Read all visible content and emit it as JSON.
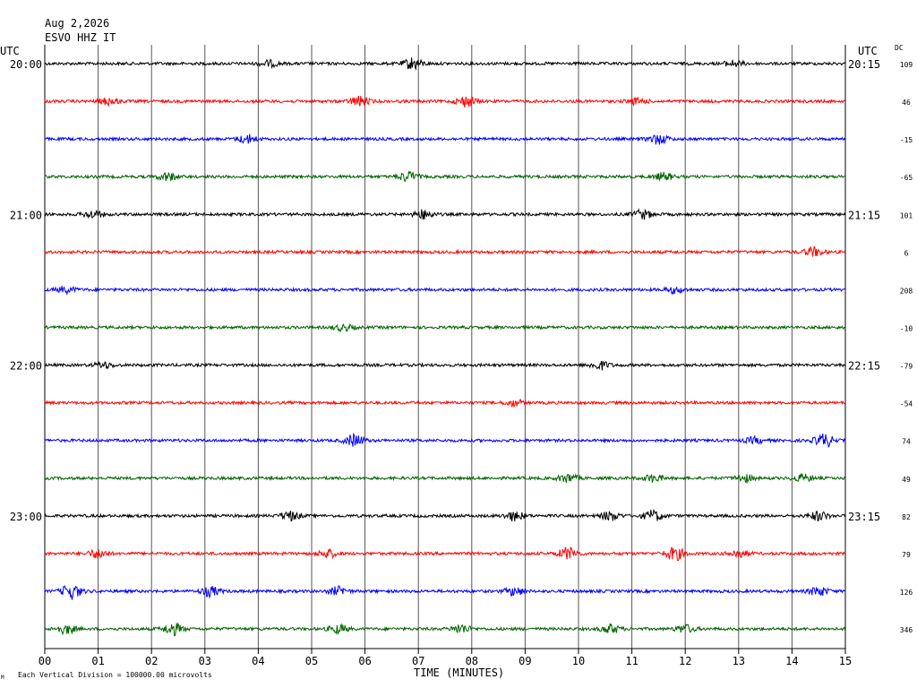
{
  "header": {
    "date": "Aug 2,2026",
    "station": "ESVO HHZ IT",
    "utc_left": "UTC",
    "utc_right": "UTC",
    "dc_label": "DC"
  },
  "footer": {
    "scale_note": "Each Vertical Division = 100000.00 microvolts",
    "corner_mark": "M"
  },
  "colors": {
    "trace_cycle": [
      "#000000",
      "#ff0000",
      "#0000ff",
      "#006400"
    ],
    "grid": "#555555",
    "frame": "#000000"
  },
  "chart_data": {
    "type": "line",
    "title": "",
    "xlabel": "TIME (MINUTES)",
    "ylabel": "",
    "x_range": [
      0,
      15
    ],
    "x_ticks": [
      "00",
      "01",
      "02",
      "03",
      "04",
      "05",
      "06",
      "07",
      "08",
      "09",
      "10",
      "11",
      "12",
      "13",
      "14",
      "15"
    ],
    "grid": true,
    "hour_labels_left": [
      "20:00",
      "21:00",
      "22:00",
      "23:00"
    ],
    "hour_labels_right": [
      "20:15",
      "21:15",
      "22:15",
      "23:15"
    ],
    "traces": [
      {
        "dc": "109",
        "events": [
          [
            4.2,
            1.0
          ],
          [
            6.9,
            2.0
          ],
          [
            12.9,
            1.0
          ]
        ]
      },
      {
        "dc": "46",
        "events": [
          [
            1.2,
            1.2
          ],
          [
            5.9,
            1.6
          ],
          [
            7.9,
            1.8
          ],
          [
            11.1,
            1.0
          ]
        ]
      },
      {
        "dc": "-15",
        "events": [
          [
            3.8,
            1.4
          ],
          [
            11.5,
            1.6
          ]
        ]
      },
      {
        "dc": "-65",
        "events": [
          [
            2.3,
            1.3
          ],
          [
            6.8,
            1.6
          ],
          [
            11.6,
            1.2
          ]
        ]
      },
      {
        "dc": "101",
        "events": [
          [
            0.9,
            1.2
          ],
          [
            7.1,
            1.5
          ],
          [
            11.2,
            1.5
          ]
        ]
      },
      {
        "dc": "6",
        "events": [
          [
            14.4,
            1.5
          ]
        ]
      },
      {
        "dc": "208",
        "events": [
          [
            0.4,
            1.0
          ],
          [
            11.8,
            1.0
          ]
        ]
      },
      {
        "dc": "-10",
        "events": [
          [
            5.6,
            1.0
          ]
        ]
      },
      {
        "dc": "-79",
        "events": [
          [
            1.1,
            1.0
          ],
          [
            10.4,
            1.4
          ]
        ]
      },
      {
        "dc": "-54",
        "events": [
          [
            8.8,
            1.0
          ]
        ]
      },
      {
        "dc": "74",
        "events": [
          [
            5.8,
            2.0
          ],
          [
            14.6,
            2.2
          ],
          [
            13.3,
            1.0
          ]
        ]
      },
      {
        "dc": "49",
        "events": [
          [
            9.8,
            1.4
          ],
          [
            11.4,
            1.2
          ],
          [
            13.1,
            1.2
          ],
          [
            14.2,
            1.2
          ]
        ]
      },
      {
        "dc": "82",
        "events": [
          [
            4.6,
            1.5
          ],
          [
            8.8,
            1.5
          ],
          [
            10.6,
            1.5
          ],
          [
            11.4,
            1.8
          ],
          [
            14.5,
            1.5
          ]
        ]
      },
      {
        "dc": "79",
        "events": [
          [
            1.0,
            1.5
          ],
          [
            5.3,
            1.3
          ],
          [
            9.8,
            2.0
          ],
          [
            11.8,
            2.2
          ],
          [
            13.0,
            1.3
          ]
        ]
      },
      {
        "dc": "126",
        "events": [
          [
            0.5,
            2.6
          ],
          [
            3.1,
            1.6
          ],
          [
            5.5,
            1.4
          ],
          [
            8.8,
            1.4
          ],
          [
            14.5,
            1.5
          ]
        ]
      },
      {
        "dc": "346",
        "events": [
          [
            0.4,
            1.5
          ],
          [
            2.4,
            2.0
          ],
          [
            5.5,
            1.4
          ],
          [
            7.8,
            1.4
          ],
          [
            10.6,
            1.5
          ],
          [
            12.0,
            1.3
          ]
        ]
      }
    ]
  }
}
